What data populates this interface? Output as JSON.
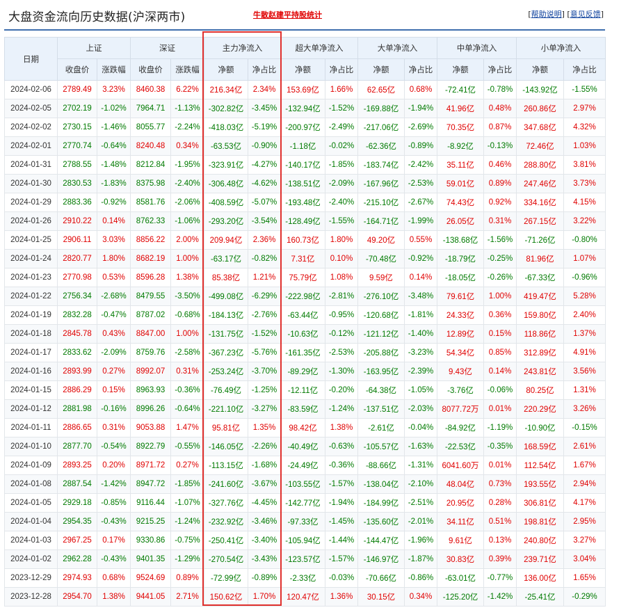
{
  "header": {
    "title": "大盘资金流向历史数据(沪深两市)",
    "promo_link": "牛散赵建平持股统计",
    "bracket_open": "[",
    "bracket_close": "]",
    "help_link": "帮助说明",
    "feedback_link": "意见反馈"
  },
  "table": {
    "date_header": "日期",
    "groups": [
      "上证",
      "深证",
      "主力净流入",
      "超大单净流入",
      "大单净流入",
      "中单净流入",
      "小单净流入"
    ],
    "subheaders": [
      "收盘价",
      "涨跌幅",
      "收盘价",
      "涨跌幅",
      "净额",
      "净占比",
      "净额",
      "净占比",
      "净额",
      "净占比",
      "净额",
      "净占比",
      "净额",
      "净占比"
    ],
    "rows": [
      [
        "2024-02-06",
        "2789.49",
        "3.23%",
        "8460.38",
        "6.22%",
        "216.34亿",
        "2.34%",
        "153.69亿",
        "1.66%",
        "62.65亿",
        "0.68%",
        "-72.41亿",
        "-0.78%",
        "-143.92亿",
        "-1.55%"
      ],
      [
        "2024-02-05",
        "2702.19",
        "-1.02%",
        "7964.71",
        "-1.13%",
        "-302.82亿",
        "-3.45%",
        "-132.94亿",
        "-1.52%",
        "-169.88亿",
        "-1.94%",
        "41.96亿",
        "0.48%",
        "260.86亿",
        "2.97%"
      ],
      [
        "2024-02-02",
        "2730.15",
        "-1.46%",
        "8055.77",
        "-2.24%",
        "-418.03亿",
        "-5.19%",
        "-200.97亿",
        "-2.49%",
        "-217.06亿",
        "-2.69%",
        "70.35亿",
        "0.87%",
        "347.68亿",
        "4.32%"
      ],
      [
        "2024-02-01",
        "2770.74",
        "-0.64%",
        "8240.48",
        "0.34%",
        "-63.53亿",
        "-0.90%",
        "-1.18亿",
        "-0.02%",
        "-62.36亿",
        "-0.89%",
        "-8.92亿",
        "-0.13%",
        "72.46亿",
        "1.03%"
      ],
      [
        "2024-01-31",
        "2788.55",
        "-1.48%",
        "8212.84",
        "-1.95%",
        "-323.91亿",
        "-4.27%",
        "-140.17亿",
        "-1.85%",
        "-183.74亿",
        "-2.42%",
        "35.11亿",
        "0.46%",
        "288.80亿",
        "3.81%"
      ],
      [
        "2024-01-30",
        "2830.53",
        "-1.83%",
        "8375.98",
        "-2.40%",
        "-306.48亿",
        "-4.62%",
        "-138.51亿",
        "-2.09%",
        "-167.96亿",
        "-2.53%",
        "59.01亿",
        "0.89%",
        "247.46亿",
        "3.73%"
      ],
      [
        "2024-01-29",
        "2883.36",
        "-0.92%",
        "8581.76",
        "-2.06%",
        "-408.59亿",
        "-5.07%",
        "-193.48亿",
        "-2.40%",
        "-215.10亿",
        "-2.67%",
        "74.43亿",
        "0.92%",
        "334.16亿",
        "4.15%"
      ],
      [
        "2024-01-26",
        "2910.22",
        "0.14%",
        "8762.33",
        "-1.06%",
        "-293.20亿",
        "-3.54%",
        "-128.49亿",
        "-1.55%",
        "-164.71亿",
        "-1.99%",
        "26.05亿",
        "0.31%",
        "267.15亿",
        "3.22%"
      ],
      [
        "2024-01-25",
        "2906.11",
        "3.03%",
        "8856.22",
        "2.00%",
        "209.94亿",
        "2.36%",
        "160.73亿",
        "1.80%",
        "49.20亿",
        "0.55%",
        "-138.68亿",
        "-1.56%",
        "-71.26亿",
        "-0.80%"
      ],
      [
        "2024-01-24",
        "2820.77",
        "1.80%",
        "8682.19",
        "1.00%",
        "-63.17亿",
        "-0.82%",
        "7.31亿",
        "0.10%",
        "-70.48亿",
        "-0.92%",
        "-18.79亿",
        "-0.25%",
        "81.96亿",
        "1.07%"
      ],
      [
        "2024-01-23",
        "2770.98",
        "0.53%",
        "8596.28",
        "1.38%",
        "85.38亿",
        "1.21%",
        "75.79亿",
        "1.08%",
        "9.59亿",
        "0.14%",
        "-18.05亿",
        "-0.26%",
        "-67.33亿",
        "-0.96%"
      ],
      [
        "2024-01-22",
        "2756.34",
        "-2.68%",
        "8479.55",
        "-3.50%",
        "-499.08亿",
        "-6.29%",
        "-222.98亿",
        "-2.81%",
        "-276.10亿",
        "-3.48%",
        "79.61亿",
        "1.00%",
        "419.47亿",
        "5.28%"
      ],
      [
        "2024-01-19",
        "2832.28",
        "-0.47%",
        "8787.02",
        "-0.68%",
        "-184.13亿",
        "-2.76%",
        "-63.44亿",
        "-0.95%",
        "-120.68亿",
        "-1.81%",
        "24.33亿",
        "0.36%",
        "159.80亿",
        "2.40%"
      ],
      [
        "2024-01-18",
        "2845.78",
        "0.43%",
        "8847.00",
        "1.00%",
        "-131.75亿",
        "-1.52%",
        "-10.63亿",
        "-0.12%",
        "-121.12亿",
        "-1.40%",
        "12.89亿",
        "0.15%",
        "118.86亿",
        "1.37%"
      ],
      [
        "2024-01-17",
        "2833.62",
        "-2.09%",
        "8759.76",
        "-2.58%",
        "-367.23亿",
        "-5.76%",
        "-161.35亿",
        "-2.53%",
        "-205.88亿",
        "-3.23%",
        "54.34亿",
        "0.85%",
        "312.89亿",
        "4.91%"
      ],
      [
        "2024-01-16",
        "2893.99",
        "0.27%",
        "8992.07",
        "0.31%",
        "-253.24亿",
        "-3.70%",
        "-89.29亿",
        "-1.30%",
        "-163.95亿",
        "-2.39%",
        "9.43亿",
        "0.14%",
        "243.81亿",
        "3.56%"
      ],
      [
        "2024-01-15",
        "2886.29",
        "0.15%",
        "8963.93",
        "-0.36%",
        "-76.49亿",
        "-1.25%",
        "-12.11亿",
        "-0.20%",
        "-64.38亿",
        "-1.05%",
        "-3.76亿",
        "-0.06%",
        "80.25亿",
        "1.31%"
      ],
      [
        "2024-01-12",
        "2881.98",
        "-0.16%",
        "8996.26",
        "-0.64%",
        "-221.10亿",
        "-3.27%",
        "-83.59亿",
        "-1.24%",
        "-137.51亿",
        "-2.03%",
        "8077.72万",
        "0.01%",
        "220.29亿",
        "3.26%"
      ],
      [
        "2024-01-11",
        "2886.65",
        "0.31%",
        "9053.88",
        "1.47%",
        "95.81亿",
        "1.35%",
        "98.42亿",
        "1.38%",
        "-2.61亿",
        "-0.04%",
        "-84.92亿",
        "-1.19%",
        "-10.90亿",
        "-0.15%"
      ],
      [
        "2024-01-10",
        "2877.70",
        "-0.54%",
        "8922.79",
        "-0.55%",
        "-146.05亿",
        "-2.26%",
        "-40.49亿",
        "-0.63%",
        "-105.57亿",
        "-1.63%",
        "-22.53亿",
        "-0.35%",
        "168.59亿",
        "2.61%"
      ],
      [
        "2024-01-09",
        "2893.25",
        "0.20%",
        "8971.72",
        "0.27%",
        "-113.15亿",
        "-1.68%",
        "-24.49亿",
        "-0.36%",
        "-88.66亿",
        "-1.31%",
        "6041.60万",
        "0.01%",
        "112.54亿",
        "1.67%"
      ],
      [
        "2024-01-08",
        "2887.54",
        "-1.42%",
        "8947.72",
        "-1.85%",
        "-241.60亿",
        "-3.67%",
        "-103.55亿",
        "-1.57%",
        "-138.04亿",
        "-2.10%",
        "48.04亿",
        "0.73%",
        "193.55亿",
        "2.94%"
      ],
      [
        "2024-01-05",
        "2929.18",
        "-0.85%",
        "9116.44",
        "-1.07%",
        "-327.76亿",
        "-4.45%",
        "-142.77亿",
        "-1.94%",
        "-184.99亿",
        "-2.51%",
        "20.95亿",
        "0.28%",
        "306.81亿",
        "4.17%"
      ],
      [
        "2024-01-04",
        "2954.35",
        "-0.43%",
        "9215.25",
        "-1.24%",
        "-232.92亿",
        "-3.46%",
        "-97.33亿",
        "-1.45%",
        "-135.60亿",
        "-2.01%",
        "34.11亿",
        "0.51%",
        "198.81亿",
        "2.95%"
      ],
      [
        "2024-01-03",
        "2967.25",
        "0.17%",
        "9330.86",
        "-0.75%",
        "-250.41亿",
        "-3.40%",
        "-105.94亿",
        "-1.44%",
        "-144.47亿",
        "-1.96%",
        "9.61亿",
        "0.13%",
        "240.80亿",
        "3.27%"
      ],
      [
        "2024-01-02",
        "2962.28",
        "-0.43%",
        "9401.35",
        "-1.29%",
        "-270.54亿",
        "-3.43%",
        "-123.57亿",
        "-1.57%",
        "-146.97亿",
        "-1.87%",
        "30.83亿",
        "0.39%",
        "239.71亿",
        "3.04%"
      ],
      [
        "2023-12-29",
        "2974.93",
        "0.68%",
        "9524.69",
        "0.89%",
        "-72.99亿",
        "-0.89%",
        "-2.33亿",
        "-0.03%",
        "-70.66亿",
        "-0.86%",
        "-63.01亿",
        "-0.77%",
        "136.00亿",
        "1.65%"
      ],
      [
        "2023-12-28",
        "2954.70",
        "1.38%",
        "9441.05",
        "2.71%",
        "150.62亿",
        "1.70%",
        "120.47亿",
        "1.36%",
        "30.15亿",
        "0.34%",
        "-125.20亿",
        "-1.42%",
        "-25.41亿",
        "-0.29%"
      ]
    ]
  },
  "colors": {
    "up": "#e00000",
    "down": "#007a00",
    "header_bg": "#eaf2fb",
    "highlight_box": "#e0302d"
  }
}
